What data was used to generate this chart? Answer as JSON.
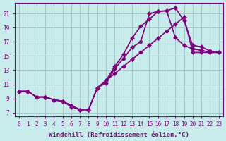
{
  "xlabel": "Windchill (Refroidissement éolien,°C)",
  "ylabel": "",
  "bg_color": "#c8ecec",
  "grid_color": "#a0c8c8",
  "line_color": "#800080",
  "marker": "D",
  "markersize": 3,
  "linewidth": 1.2,
  "xlim": [
    -0.5,
    23.5
  ],
  "ylim": [
    6.5,
    22.5
  ],
  "xticks": [
    0,
    1,
    2,
    3,
    4,
    5,
    6,
    7,
    8,
    9,
    10,
    11,
    12,
    13,
    14,
    15,
    16,
    17,
    18,
    19,
    20,
    21,
    22,
    23
  ],
  "yticks": [
    7,
    9,
    11,
    13,
    15,
    17,
    19,
    21
  ],
  "tick_fontsize": 5.5,
  "xlabel_fontsize": 6.5,
  "series": [
    {
      "x": [
        0,
        1,
        2,
        3,
        4,
        5,
        6,
        7,
        8,
        9,
        10,
        11,
        12,
        13,
        14,
        15,
        16,
        17,
        18,
        19,
        20,
        21,
        22,
        23
      ],
      "y": [
        10,
        10,
        9.2,
        9.2,
        8.8,
        8.6,
        7.8,
        7.4,
        7.4,
        10.5,
        11.2,
        13.2,
        14.6,
        16.2,
        17.0,
        21.0,
        21.3,
        21.4,
        21.8,
        20.0,
        16.5,
        16.3,
        15.7,
        15.5
      ]
    },
    {
      "x": [
        0,
        1,
        2,
        3,
        4,
        5,
        6,
        7,
        8,
        9,
        10,
        11,
        12,
        13,
        14,
        15,
        16,
        17,
        18,
        19,
        20,
        21,
        22,
        23
      ],
      "y": [
        10,
        10,
        9.2,
        9.2,
        8.8,
        8.6,
        8.0,
        7.4,
        7.4,
        10.5,
        11.5,
        13.5,
        15.2,
        17.5,
        19.2,
        20.2,
        21.3,
        21.4,
        17.6,
        16.5,
        16.0,
        15.8,
        15.5,
        15.5
      ]
    },
    {
      "x": [
        0,
        1,
        2,
        3,
        4,
        5,
        6,
        7,
        8,
        9,
        10,
        11,
        12,
        13,
        14,
        15,
        16,
        17,
        18,
        19,
        20,
        21,
        22,
        23
      ],
      "y": [
        10,
        10,
        9.2,
        9.2,
        8.8,
        8.6,
        8.0,
        7.4,
        7.4,
        10.5,
        11.5,
        12.5,
        13.5,
        14.5,
        15.5,
        16.5,
        17.5,
        18.5,
        19.5,
        20.5,
        15.5,
        15.5,
        15.5,
        15.5
      ]
    }
  ]
}
